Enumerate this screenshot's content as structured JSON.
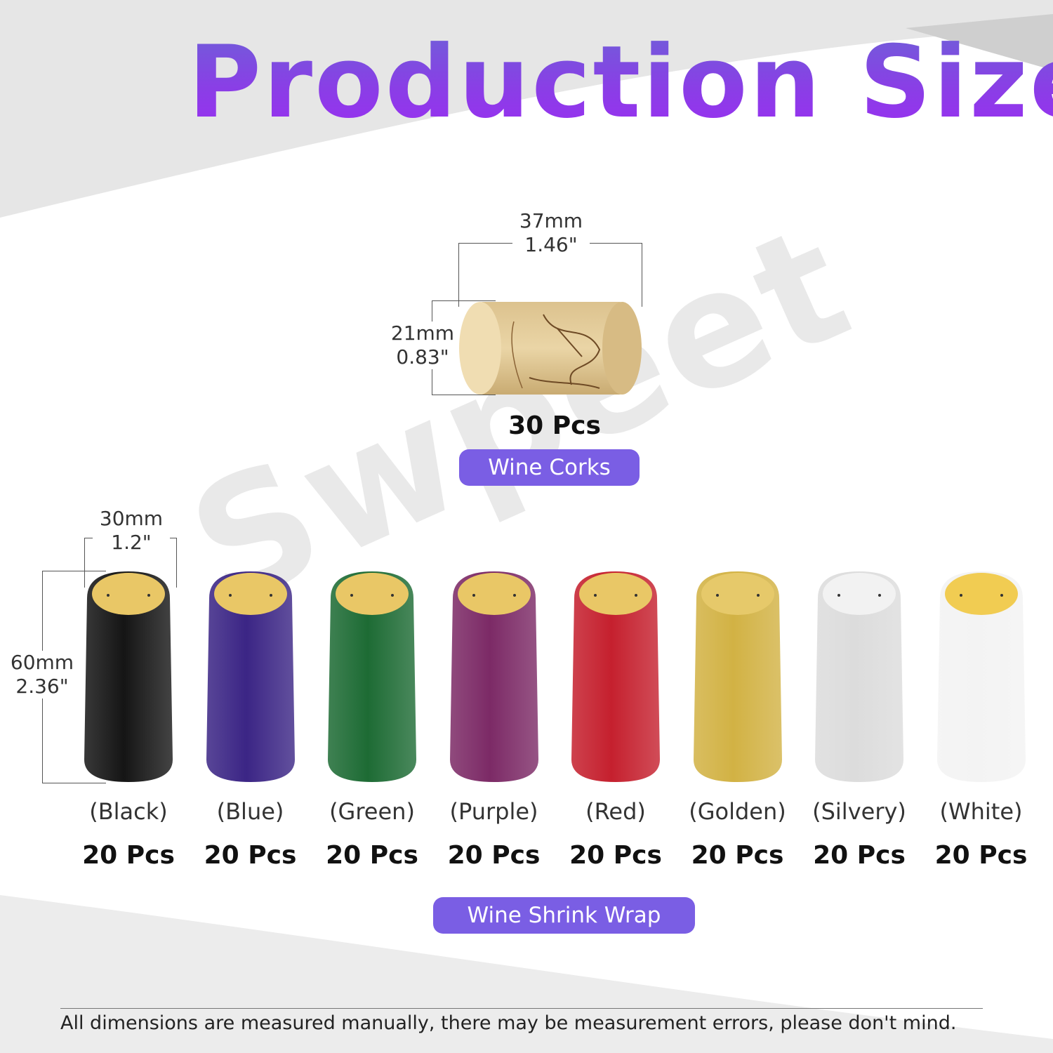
{
  "title": "Production Size",
  "watermark": "Swpeet",
  "cork": {
    "width_mm": "37mm",
    "width_in": "1.46\"",
    "height_mm": "21mm",
    "height_in": "0.83\"",
    "count": "30 Pcs",
    "label": "Wine Corks"
  },
  "wrap": {
    "width_mm": "30mm",
    "width_in": "1.2\"",
    "height_mm": "60mm",
    "height_in": "2.36\"",
    "label": "Wine Shrink Wrap",
    "items": [
      {
        "color_name": "(Black)",
        "count": "20 Pcs",
        "color": "#151515",
        "top": "#e9c766"
      },
      {
        "color_name": "(Blue)",
        "count": "20 Pcs",
        "color": "#3b2585",
        "top": "#e9c766"
      },
      {
        "color_name": "(Green)",
        "count": "20 Pcs",
        "color": "#1d6b34",
        "top": "#e9c766"
      },
      {
        "color_name": "(Purple)",
        "count": "20 Pcs",
        "color": "#7c2a66",
        "top": "#e9c766"
      },
      {
        "color_name": "(Red)",
        "count": "20 Pcs",
        "color": "#c5202e",
        "top": "#e9c766"
      },
      {
        "color_name": "(Golden)",
        "count": "20 Pcs",
        "color": "#d2b244",
        "top": "#e6c96a"
      },
      {
        "color_name": "(Silvery)",
        "count": "20 Pcs",
        "color": "#dcdcdc",
        "top": "#f2f2f2"
      },
      {
        "color_name": "(White)",
        "count": "20 Pcs",
        "color": "#f3f3f3",
        "top": "#f1cc52"
      }
    ]
  },
  "footnote": "All dimensions are measured manually, there may be measurement errors, please don't mind."
}
